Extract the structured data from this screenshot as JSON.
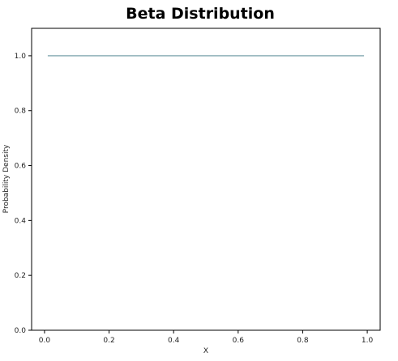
{
  "chart_data": {
    "type": "line",
    "title": "Beta Distribution",
    "xlabel": "X",
    "ylabel": "Probability Density",
    "xlim": [
      -0.04,
      1.04
    ],
    "ylim": [
      0.0,
      1.1
    ],
    "xticks": [
      0.0,
      0.2,
      0.4,
      0.6,
      0.8,
      1.0
    ],
    "xtick_labels": [
      "0.0",
      "0.2",
      "0.4",
      "0.6",
      "0.8",
      "1.0"
    ],
    "yticks": [
      0.0,
      0.2,
      0.4,
      0.6,
      0.8,
      1.0
    ],
    "ytick_labels": [
      "0.0",
      "0.2",
      "0.4",
      "0.6",
      "0.8",
      "1.0"
    ],
    "grid": false,
    "series": [
      {
        "color": "#8fb0b8",
        "x": [
          0.01,
          0.99
        ],
        "y": [
          1.0,
          1.0
        ]
      }
    ]
  }
}
